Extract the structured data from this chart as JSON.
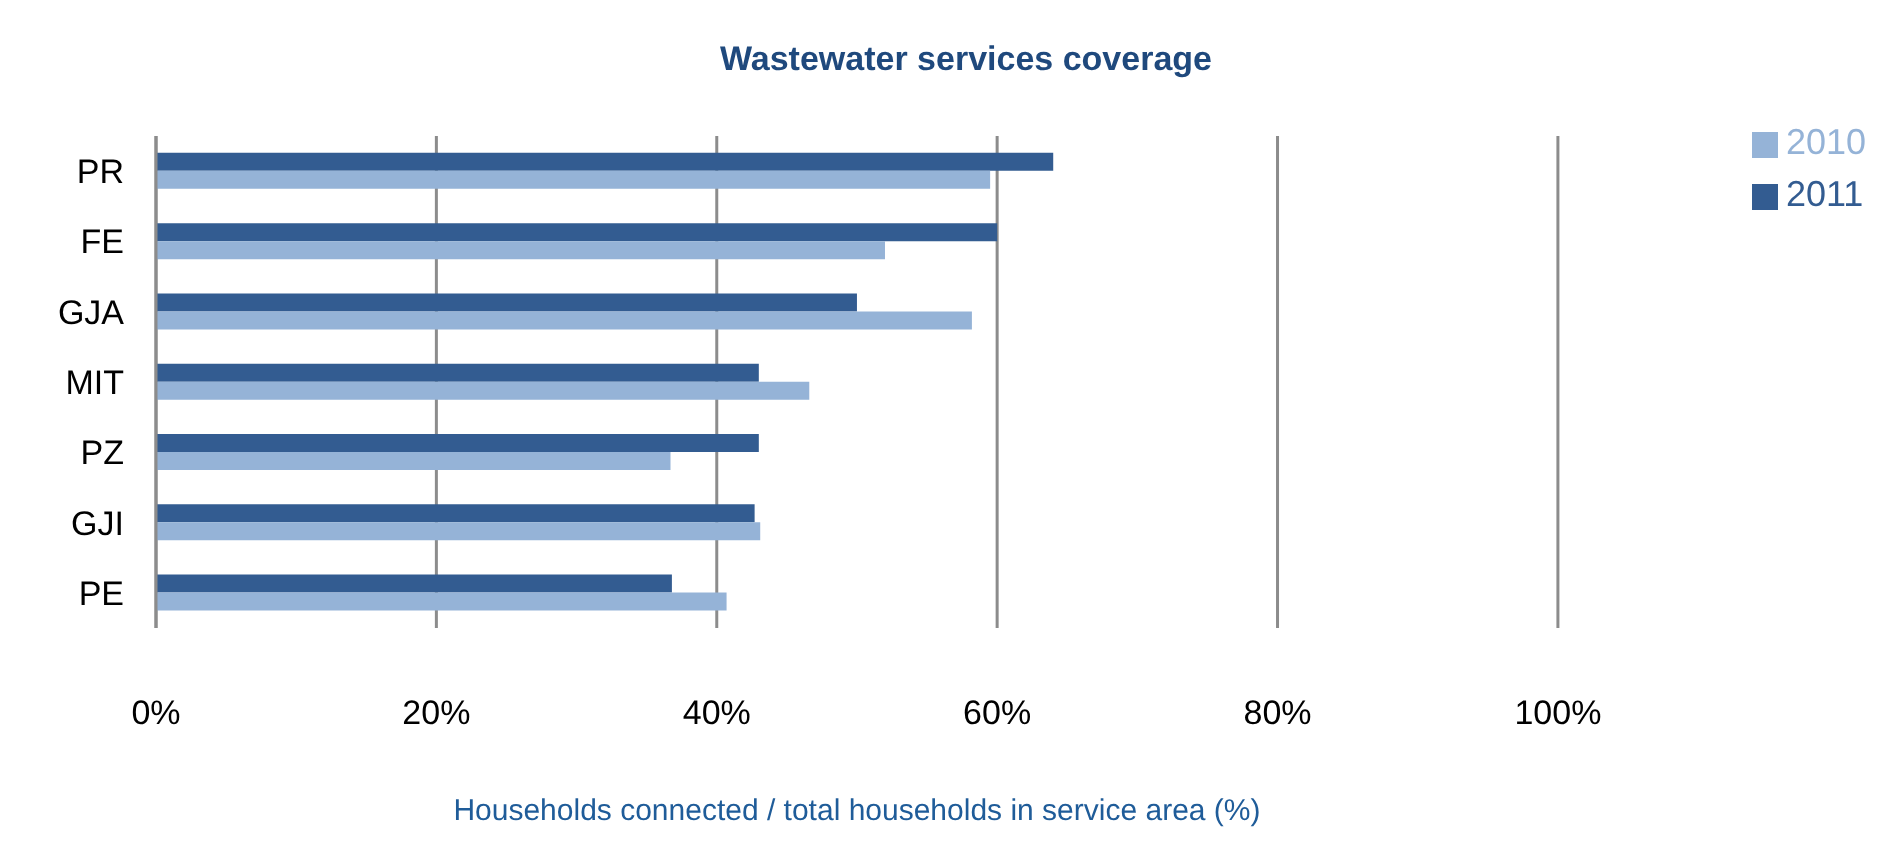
{
  "chart_data": {
    "type": "bar",
    "orientation": "horizontal",
    "title": "Wastewater services coverage",
    "xlabel": "Households connected / total households in service area (%)",
    "categories": [
      "PR",
      "FE",
      "GJA",
      "MIT",
      "PZ",
      "GJI",
      "PE"
    ],
    "series": [
      {
        "name": "2011",
        "color": "#335c91",
        "values": [
          64,
          60,
          50,
          43,
          43,
          42.7,
          36.8
        ]
      },
      {
        "name": "2010",
        "color": "#95b3d7",
        "values": [
          59.5,
          52,
          58.2,
          46.6,
          36.7,
          43.1,
          40.7
        ]
      }
    ],
    "xlim": [
      0,
      100
    ],
    "xticks": [
      {
        "value": 0,
        "label": "0%"
      },
      {
        "value": 20,
        "label": "20%"
      },
      {
        "value": 40,
        "label": "40%"
      },
      {
        "value": 60,
        "label": "60%"
      },
      {
        "value": 80,
        "label": "80%"
      },
      {
        "value": 100,
        "label": "100%"
      }
    ],
    "grid": "x",
    "legend": "top right"
  }
}
